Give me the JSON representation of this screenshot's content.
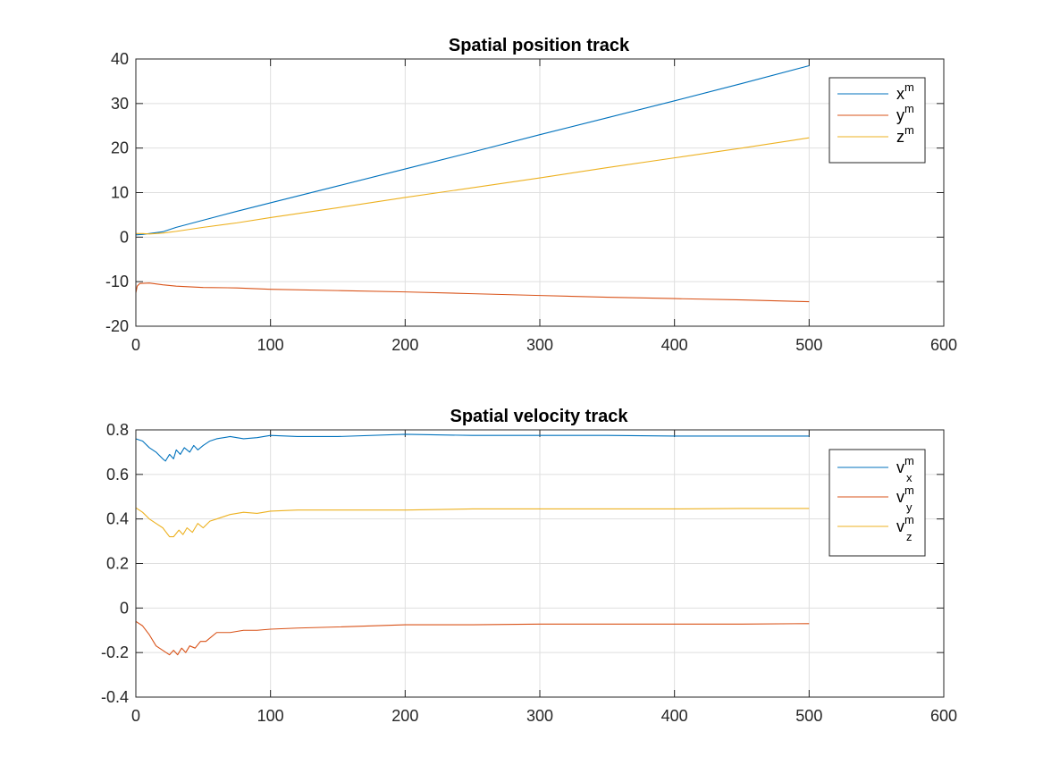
{
  "chart_data": [
    {
      "type": "line",
      "title": "Spatial position track",
      "xlabel": "",
      "ylabel": "",
      "xlim": [
        0,
        600
      ],
      "ylim": [
        -20,
        40
      ],
      "xticks": [
        0,
        100,
        200,
        300,
        400,
        500,
        600
      ],
      "yticks": [
        -20,
        -10,
        0,
        10,
        20,
        30,
        40
      ],
      "xtick_labels": [
        "0",
        "100",
        "200",
        "300",
        "400",
        "500",
        "600"
      ],
      "ytick_labels": [
        "-20",
        "-10",
        "0",
        "10",
        "20",
        "30",
        "40"
      ],
      "grid": true,
      "legend_position": "top-right",
      "series": [
        {
          "name": "x",
          "sup": "m",
          "sub": "",
          "color": "#0072BD",
          "points": [
            [
              0,
              0.5
            ],
            [
              5,
              0.6
            ],
            [
              10,
              0.8
            ],
            [
              20,
              1.2
            ],
            [
              30,
              2.2
            ],
            [
              50,
              3.8
            ],
            [
              75,
              5.8
            ],
            [
              100,
              7.7
            ],
            [
              150,
              11.5
            ],
            [
              200,
              15.3
            ],
            [
              250,
              19.1
            ],
            [
              300,
              23.0
            ],
            [
              350,
              26.8
            ],
            [
              400,
              30.6
            ],
            [
              450,
              34.5
            ],
            [
              500,
              38.5
            ]
          ]
        },
        {
          "name": "y",
          "sup": "m",
          "sub": "",
          "color": "#D95319",
          "points": [
            [
              0,
              -12.5
            ],
            [
              1,
              -11.0
            ],
            [
              3,
              -10.4
            ],
            [
              10,
              -10.3
            ],
            [
              20,
              -10.7
            ],
            [
              30,
              -11.0
            ],
            [
              50,
              -11.3
            ],
            [
              75,
              -11.4
            ],
            [
              100,
              -11.7
            ],
            [
              150,
              -12.0
            ],
            [
              200,
              -12.3
            ],
            [
              250,
              -12.7
            ],
            [
              300,
              -13.1
            ],
            [
              350,
              -13.5
            ],
            [
              400,
              -13.8
            ],
            [
              450,
              -14.1
            ],
            [
              500,
              -14.5
            ]
          ]
        },
        {
          "name": "z",
          "sup": "m",
          "sub": "",
          "color": "#EDB120",
          "points": [
            [
              0,
              0.8
            ],
            [
              5,
              0.8
            ],
            [
              10,
              0.7
            ],
            [
              20,
              0.9
            ],
            [
              30,
              1.3
            ],
            [
              50,
              2.2
            ],
            [
              75,
              3.2
            ],
            [
              100,
              4.4
            ],
            [
              150,
              6.6
            ],
            [
              200,
              8.9
            ],
            [
              250,
              11.1
            ],
            [
              300,
              13.3
            ],
            [
              350,
              15.6
            ],
            [
              400,
              17.8
            ],
            [
              450,
              20.0
            ],
            [
              500,
              22.3
            ]
          ]
        }
      ]
    },
    {
      "type": "line",
      "title": "Spatial velocity track",
      "xlabel": "",
      "ylabel": "",
      "xlim": [
        0,
        600
      ],
      "ylim": [
        -0.4,
        0.8
      ],
      "xticks": [
        0,
        100,
        200,
        300,
        400,
        500,
        600
      ],
      "yticks": [
        -0.4,
        -0.2,
        0,
        0.2,
        0.4,
        0.6,
        0.8
      ],
      "xtick_labels": [
        "0",
        "100",
        "200",
        "300",
        "400",
        "500",
        "600"
      ],
      "ytick_labels": [
        "-0.4",
        "-0.2",
        "0",
        "0.2",
        "0.4",
        "0.6",
        "0.8"
      ],
      "grid": true,
      "legend_position": "top-right",
      "series": [
        {
          "name": "v",
          "sup": "m",
          "sub": "x",
          "color": "#0072BD",
          "points": [
            [
              0,
              0.76
            ],
            [
              5,
              0.75
            ],
            [
              10,
              0.72
            ],
            [
              15,
              0.7
            ],
            [
              20,
              0.67
            ],
            [
              22,
              0.66
            ],
            [
              25,
              0.69
            ],
            [
              28,
              0.67
            ],
            [
              30,
              0.71
            ],
            [
              33,
              0.69
            ],
            [
              36,
              0.72
            ],
            [
              40,
              0.7
            ],
            [
              43,
              0.73
            ],
            [
              46,
              0.71
            ],
            [
              50,
              0.73
            ],
            [
              55,
              0.75
            ],
            [
              60,
              0.76
            ],
            [
              70,
              0.77
            ],
            [
              80,
              0.76
            ],
            [
              90,
              0.765
            ],
            [
              100,
              0.775
            ],
            [
              120,
              0.77
            ],
            [
              150,
              0.77
            ],
            [
              200,
              0.78
            ],
            [
              250,
              0.775
            ],
            [
              300,
              0.775
            ],
            [
              350,
              0.775
            ],
            [
              400,
              0.772
            ],
            [
              450,
              0.772
            ],
            [
              500,
              0.772
            ]
          ]
        },
        {
          "name": "v",
          "sup": "m",
          "sub": "y",
          "color": "#D95319",
          "points": [
            [
              0,
              -0.06
            ],
            [
              5,
              -0.08
            ],
            [
              10,
              -0.12
            ],
            [
              15,
              -0.17
            ],
            [
              20,
              -0.19
            ],
            [
              25,
              -0.21
            ],
            [
              28,
              -0.19
            ],
            [
              31,
              -0.21
            ],
            [
              34,
              -0.18
            ],
            [
              37,
              -0.2
            ],
            [
              40,
              -0.17
            ],
            [
              44,
              -0.18
            ],
            [
              48,
              -0.15
            ],
            [
              52,
              -0.15
            ],
            [
              56,
              -0.13
            ],
            [
              60,
              -0.11
            ],
            [
              70,
              -0.11
            ],
            [
              80,
              -0.1
            ],
            [
              90,
              -0.1
            ],
            [
              100,
              -0.095
            ],
            [
              120,
              -0.09
            ],
            [
              150,
              -0.085
            ],
            [
              200,
              -0.075
            ],
            [
              250,
              -0.075
            ],
            [
              300,
              -0.072
            ],
            [
              350,
              -0.072
            ],
            [
              400,
              -0.072
            ],
            [
              450,
              -0.072
            ],
            [
              500,
              -0.07
            ]
          ]
        },
        {
          "name": "v",
          "sup": "m",
          "sub": "z",
          "color": "#EDB120",
          "points": [
            [
              0,
              0.45
            ],
            [
              5,
              0.43
            ],
            [
              10,
              0.4
            ],
            [
              15,
              0.38
            ],
            [
              20,
              0.36
            ],
            [
              25,
              0.32
            ],
            [
              28,
              0.32
            ],
            [
              32,
              0.35
            ],
            [
              35,
              0.33
            ],
            [
              38,
              0.36
            ],
            [
              42,
              0.34
            ],
            [
              46,
              0.38
            ],
            [
              50,
              0.36
            ],
            [
              55,
              0.39
            ],
            [
              60,
              0.4
            ],
            [
              70,
              0.42
            ],
            [
              80,
              0.43
            ],
            [
              90,
              0.425
            ],
            [
              100,
              0.435
            ],
            [
              120,
              0.44
            ],
            [
              150,
              0.44
            ],
            [
              200,
              0.44
            ],
            [
              250,
              0.445
            ],
            [
              300,
              0.445
            ],
            [
              350,
              0.445
            ],
            [
              400,
              0.445
            ],
            [
              450,
              0.447
            ],
            [
              500,
              0.447
            ]
          ]
        }
      ]
    }
  ]
}
